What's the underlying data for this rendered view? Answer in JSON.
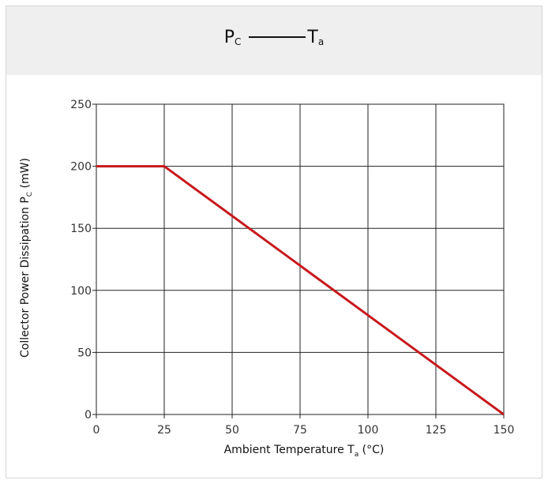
{
  "header": {
    "title_main": "P",
    "title_main_sub": "C",
    "title_right": "T",
    "title_right_sub": "a"
  },
  "chart_data": {
    "type": "line",
    "title": "P_C —— T_a",
    "xlabel": "Ambient Temperature  T_a (°C)",
    "ylabel": "Collector Power Dissipation  P_C (mW)",
    "xlim": [
      0,
      150
    ],
    "ylim": [
      0,
      250
    ],
    "xticks": [
      0,
      25,
      50,
      75,
      100,
      125,
      150
    ],
    "yticks": [
      0,
      50,
      100,
      150,
      200,
      250
    ],
    "grid": true,
    "series": [
      {
        "x": [
          0,
          25,
          150
        ],
        "y": [
          200,
          200,
          0
        ],
        "color": "#c8181c"
      }
    ]
  }
}
